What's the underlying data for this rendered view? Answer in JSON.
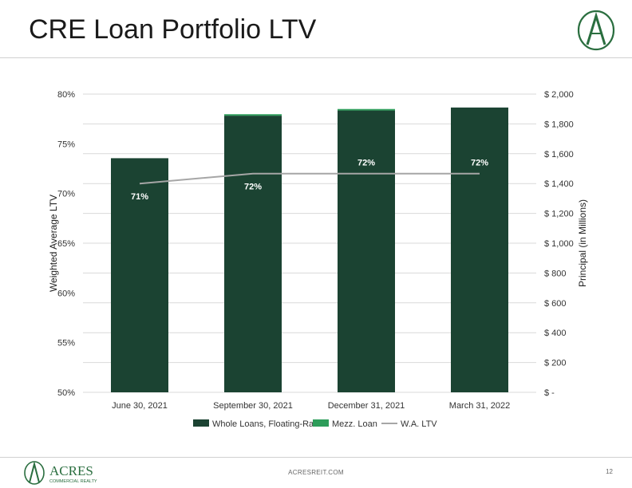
{
  "page": {
    "title": "CRE Loan Portfolio LTV",
    "footer_url": "ACRESREIT.COM",
    "page_number": "12",
    "logo_text": "ACRES",
    "logo_subtext": "COMMERCIAL REALTY",
    "logo_letter": "A"
  },
  "colors": {
    "whole_loans": "#1b4332",
    "mezz_loan": "#2d9d5a",
    "wa_ltv": "#a6a6a6",
    "grid": "#d9d9d9",
    "brand_green": "#2a6e3f"
  },
  "chart_data": {
    "type": "bar",
    "title": "",
    "categories": [
      "June 30, 2021",
      "September 30, 2021",
      "December 31, 2021",
      "March 31, 2022"
    ],
    "ylabel_left": "Weighted Average LTV",
    "ylabel_right": "Principal (in Millions)",
    "ylim_left": [
      50,
      80
    ],
    "ylim_right": [
      0,
      2000
    ],
    "left_ticks": [
      "50%",
      "55%",
      "60%",
      "65%",
      "70%",
      "75%",
      "80%"
    ],
    "left_tick_values": [
      50,
      55,
      60,
      65,
      70,
      75,
      80
    ],
    "right_ticks": [
      "$ -",
      "$ 200",
      "$ 400",
      "$ 600",
      "$ 800",
      "$ 1,000",
      "$ 1,200",
      "$ 1,400",
      "$ 1,600",
      "$ 1,800",
      "$ 2,000"
    ],
    "right_tick_values": [
      0,
      200,
      400,
      600,
      800,
      1000,
      1200,
      1400,
      1600,
      1800,
      2000
    ],
    "series": [
      {
        "name": "Whole Loans, Floating-Rate",
        "axis": "right",
        "kind": "bar",
        "values": [
          1570,
          1855,
          1890,
          1910
        ]
      },
      {
        "name": "Mezz. Loan",
        "axis": "right",
        "kind": "bar",
        "values": [
          0,
          10,
          10,
          0
        ]
      },
      {
        "name": "W.A. LTV",
        "axis": "left",
        "kind": "line",
        "values": [
          71,
          72,
          72,
          72
        ],
        "labels": [
          "71%",
          "72%",
          "72%",
          "72%"
        ]
      }
    ],
    "legend": "bottom",
    "grid": true
  }
}
